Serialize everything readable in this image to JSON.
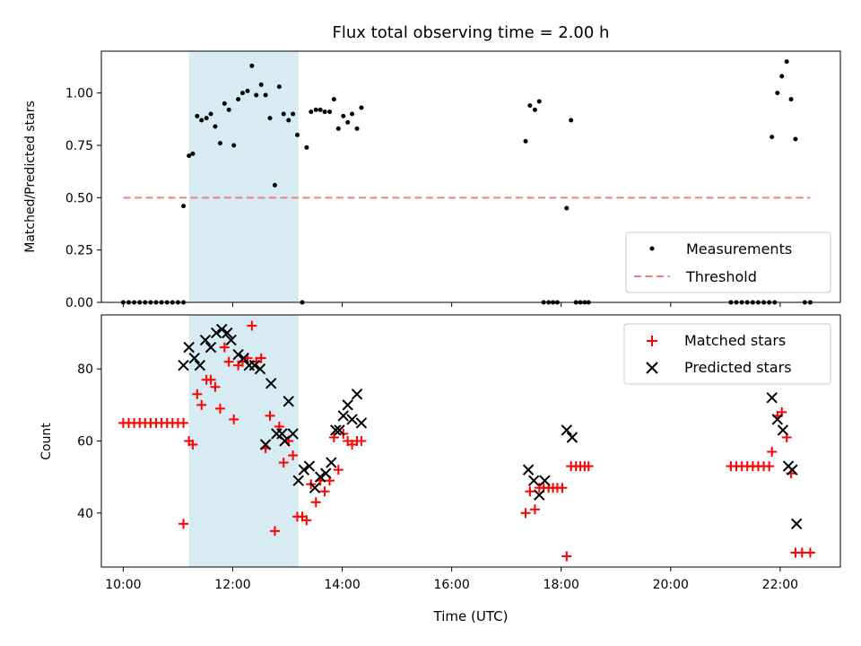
{
  "chart_data": [
    {
      "type": "scatter",
      "title": "Flux total observing time = 2.00 h",
      "ylabel": "Matched/Predicted stars",
      "xlabel": "",
      "ylim": [
        0,
        1.2
      ],
      "yticks": [
        "0.00",
        "0.25",
        "0.50",
        "0.75",
        "1.00"
      ],
      "xticks": [
        "10:00",
        "12:00",
        "14:00",
        "16:00",
        "18:00",
        "20:00",
        "22:00"
      ],
      "x_unit": "hours UTC",
      "xlim": [
        9.6,
        23.1
      ],
      "shaded_span": [
        11.2,
        13.2
      ],
      "legend_position": "lower-right",
      "threshold": {
        "name": "Threshold",
        "value": 0.5,
        "x": [
          10.0,
          22.55
        ],
        "color": "#f08080",
        "style": "dashed"
      },
      "series": [
        {
          "name": "Measurements",
          "color": "#000000",
          "marker": "dot",
          "points": [
            [
              10.0,
              0
            ],
            [
              10.1,
              0
            ],
            [
              10.2,
              0
            ],
            [
              10.3,
              0
            ],
            [
              10.4,
              0
            ],
            [
              10.5,
              0
            ],
            [
              10.6,
              0
            ],
            [
              10.7,
              0
            ],
            [
              10.8,
              0
            ],
            [
              10.9,
              0
            ],
            [
              11.0,
              0
            ],
            [
              11.1,
              0
            ],
            [
              11.1,
              0.46
            ],
            [
              11.2,
              0.7
            ],
            [
              11.27,
              0.71
            ],
            [
              11.35,
              0.89
            ],
            [
              11.43,
              0.87
            ],
            [
              11.52,
              0.88
            ],
            [
              11.6,
              0.9
            ],
            [
              11.68,
              0.84
            ],
            [
              11.77,
              0.76
            ],
            [
              11.85,
              0.95
            ],
            [
              11.93,
              0.92
            ],
            [
              12.02,
              0.75
            ],
            [
              12.1,
              0.97
            ],
            [
              12.18,
              1.0
            ],
            [
              12.27,
              1.01
            ],
            [
              12.35,
              1.13
            ],
            [
              12.43,
              0.99
            ],
            [
              12.52,
              1.04
            ],
            [
              12.6,
              0.99
            ],
            [
              12.68,
              0.88
            ],
            [
              12.77,
              0.56
            ],
            [
              12.85,
              1.03
            ],
            [
              12.93,
              0.9
            ],
            [
              13.02,
              0.87
            ],
            [
              13.1,
              0.9
            ],
            [
              13.18,
              0.8
            ],
            [
              13.27,
              0
            ],
            [
              13.35,
              0.74
            ],
            [
              13.43,
              0.91
            ],
            [
              13.52,
              0.92
            ],
            [
              13.6,
              0.92
            ],
            [
              13.68,
              0.91
            ],
            [
              13.77,
              0.91
            ],
            [
              13.85,
              0.97
            ],
            [
              13.93,
              0.83
            ],
            [
              14.02,
              0.89
            ],
            [
              14.1,
              0.86
            ],
            [
              14.18,
              0.9
            ],
            [
              14.27,
              0.83
            ],
            [
              14.35,
              0.93
            ],
            [
              17.35,
              0.77
            ],
            [
              17.43,
              0.94
            ],
            [
              17.52,
              0.92
            ],
            [
              17.6,
              0.96
            ],
            [
              17.68,
              0
            ],
            [
              17.77,
              0
            ],
            [
              17.85,
              0
            ],
            [
              17.93,
              0
            ],
            [
              18.1,
              0.45
            ],
            [
              18.18,
              0.87
            ],
            [
              18.27,
              0
            ],
            [
              18.35,
              0
            ],
            [
              18.43,
              0
            ],
            [
              18.5,
              0
            ],
            [
              21.1,
              0
            ],
            [
              21.2,
              0
            ],
            [
              21.3,
              0
            ],
            [
              21.4,
              0
            ],
            [
              21.5,
              0
            ],
            [
              21.6,
              0
            ],
            [
              21.7,
              0
            ],
            [
              21.8,
              0
            ],
            [
              21.9,
              0
            ],
            [
              21.85,
              0.79
            ],
            [
              21.95,
              1.0
            ],
            [
              22.03,
              1.08
            ],
            [
              22.12,
              1.15
            ],
            [
              22.2,
              0.97
            ],
            [
              22.28,
              0.78
            ],
            [
              22.45,
              0
            ],
            [
              22.55,
              0
            ]
          ]
        }
      ]
    },
    {
      "type": "scatter",
      "title": "",
      "ylabel": "Count",
      "xlabel": "Time (UTC)",
      "ylim": [
        25,
        95
      ],
      "yticks": [
        "40",
        "60",
        "80"
      ],
      "xticks": [
        "10:00",
        "12:00",
        "14:00",
        "16:00",
        "18:00",
        "20:00",
        "22:00"
      ],
      "x_unit": "hours UTC",
      "xlim": [
        9.6,
        23.1
      ],
      "shaded_span": [
        11.2,
        13.2
      ],
      "legend_position": "top-right",
      "series": [
        {
          "name": "Matched stars",
          "color": "#ff0000",
          "marker": "plus",
          "points": [
            [
              10.0,
              65
            ],
            [
              10.1,
              65
            ],
            [
              10.2,
              65
            ],
            [
              10.3,
              65
            ],
            [
              10.4,
              65
            ],
            [
              10.5,
              65
            ],
            [
              10.6,
              65
            ],
            [
              10.7,
              65
            ],
            [
              10.8,
              65
            ],
            [
              10.9,
              65
            ],
            [
              11.0,
              65
            ],
            [
              11.1,
              65
            ],
            [
              11.1,
              37
            ],
            [
              11.2,
              60
            ],
            [
              11.27,
              59
            ],
            [
              11.35,
              73
            ],
            [
              11.43,
              70
            ],
            [
              11.52,
              77
            ],
            [
              11.6,
              77
            ],
            [
              11.68,
              75
            ],
            [
              11.77,
              69
            ],
            [
              11.85,
              86
            ],
            [
              11.93,
              82
            ],
            [
              12.02,
              66
            ],
            [
              12.1,
              81
            ],
            [
              12.18,
              82
            ],
            [
              12.27,
              83
            ],
            [
              12.35,
              92
            ],
            [
              12.43,
              82
            ],
            [
              12.52,
              83
            ],
            [
              12.6,
              58
            ],
            [
              12.68,
              67
            ],
            [
              12.77,
              35
            ],
            [
              12.85,
              64
            ],
            [
              12.93,
              54
            ],
            [
              13.02,
              60
            ],
            [
              13.1,
              56
            ],
            [
              13.18,
              39
            ],
            [
              13.27,
              39
            ],
            [
              13.35,
              38
            ],
            [
              13.43,
              48
            ],
            [
              13.52,
              43
            ],
            [
              13.6,
              49
            ],
            [
              13.68,
              46
            ],
            [
              13.77,
              49
            ],
            [
              13.85,
              61
            ],
            [
              13.93,
              52
            ],
            [
              14.02,
              62
            ],
            [
              14.1,
              60
            ],
            [
              14.18,
              59
            ],
            [
              14.27,
              60
            ],
            [
              14.35,
              60
            ],
            [
              17.35,
              40
            ],
            [
              17.43,
              46
            ],
            [
              17.52,
              41
            ],
            [
              17.6,
              47
            ],
            [
              17.68,
              47
            ],
            [
              17.77,
              47
            ],
            [
              17.85,
              47
            ],
            [
              17.93,
              47
            ],
            [
              18.02,
              47
            ],
            [
              18.1,
              28
            ],
            [
              18.18,
              53
            ],
            [
              18.27,
              53
            ],
            [
              18.35,
              53
            ],
            [
              18.43,
              53
            ],
            [
              18.5,
              53
            ],
            [
              21.1,
              53
            ],
            [
              21.2,
              53
            ],
            [
              21.3,
              53
            ],
            [
              21.4,
              53
            ],
            [
              21.5,
              53
            ],
            [
              21.6,
              53
            ],
            [
              21.7,
              53
            ],
            [
              21.8,
              53
            ],
            [
              21.85,
              57
            ],
            [
              21.95,
              67
            ],
            [
              22.03,
              68
            ],
            [
              22.12,
              61
            ],
            [
              22.2,
              51
            ],
            [
              22.28,
              29
            ],
            [
              22.4,
              29
            ],
            [
              22.55,
              29
            ]
          ]
        },
        {
          "name": "Predicted stars",
          "color": "#000000",
          "marker": "cross",
          "points": [
            [
              11.1,
              81
            ],
            [
              11.2,
              86
            ],
            [
              11.3,
              83
            ],
            [
              11.4,
              81
            ],
            [
              11.5,
              88
            ],
            [
              11.6,
              86
            ],
            [
              11.7,
              90
            ],
            [
              11.8,
              91
            ],
            [
              11.9,
              90
            ],
            [
              11.97,
              88
            ],
            [
              12.1,
              84
            ],
            [
              12.2,
              83
            ],
            [
              12.3,
              81
            ],
            [
              12.4,
              81
            ],
            [
              12.5,
              80
            ],
            [
              12.6,
              59
            ],
            [
              12.7,
              76
            ],
            [
              12.8,
              62
            ],
            [
              12.9,
              62
            ],
            [
              12.95,
              60
            ],
            [
              13.02,
              71
            ],
            [
              13.1,
              62
            ],
            [
              13.2,
              49
            ],
            [
              13.3,
              52
            ],
            [
              13.4,
              53
            ],
            [
              13.5,
              47
            ],
            [
              13.6,
              50
            ],
            [
              13.7,
              51
            ],
            [
              13.8,
              54
            ],
            [
              13.88,
              63
            ],
            [
              13.95,
              63
            ],
            [
              14.02,
              67
            ],
            [
              14.1,
              70
            ],
            [
              14.18,
              66
            ],
            [
              14.27,
              73
            ],
            [
              14.35,
              65
            ],
            [
              17.4,
              52
            ],
            [
              17.5,
              49
            ],
            [
              17.6,
              45
            ],
            [
              17.7,
              49
            ],
            [
              18.1,
              63
            ],
            [
              18.2,
              61
            ],
            [
              21.85,
              72
            ],
            [
              21.95,
              66
            ],
            [
              22.05,
              63
            ],
            [
              22.15,
              53
            ],
            [
              22.22,
              52
            ],
            [
              22.3,
              37
            ]
          ]
        }
      ]
    }
  ]
}
